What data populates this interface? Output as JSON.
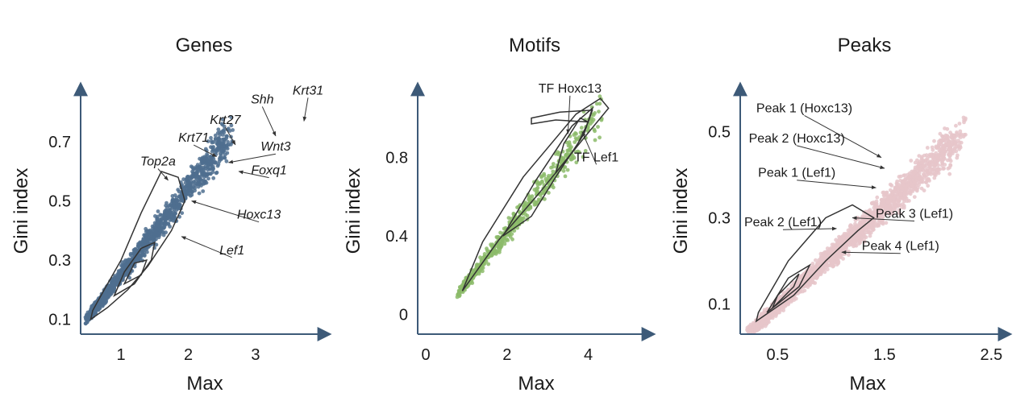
{
  "chart_data": [
    {
      "type": "scatter",
      "title": "Genes",
      "xlabel": "Max",
      "ylabel": "Gini index",
      "xlim": [
        0.4,
        3.9
      ],
      "ylim": [
        0.05,
        0.88
      ],
      "xticks": [
        1,
        2,
        3
      ],
      "xtick_labels": [
        "1",
        "2",
        "3"
      ],
      "yticks": [
        0.1,
        0.3,
        0.5,
        0.7
      ],
      "ytick_labels": [
        "0.1",
        "0.3",
        "0.5",
        "0.7"
      ],
      "point_color": "#4f6f8f",
      "density_trend": {
        "x_start": 0.55,
        "x_end": 2.6,
        "slope": 0.29,
        "intercept": -0.04
      },
      "contours": [
        [
          [
            0.55,
            0.1
          ],
          [
            0.8,
            0.14
          ],
          [
            1.1,
            0.2
          ],
          [
            1.4,
            0.28
          ],
          [
            1.75,
            0.4
          ],
          [
            1.95,
            0.5
          ],
          [
            1.85,
            0.58
          ],
          [
            1.6,
            0.6
          ],
          [
            1.3,
            0.46
          ],
          [
            1.0,
            0.3
          ],
          [
            0.75,
            0.2
          ],
          [
            0.58,
            0.13
          ],
          [
            0.55,
            0.1
          ]
        ],
        [
          [
            0.9,
            0.18
          ],
          [
            1.2,
            0.22
          ],
          [
            1.45,
            0.3
          ],
          [
            1.5,
            0.36
          ],
          [
            1.3,
            0.34
          ],
          [
            1.05,
            0.26
          ],
          [
            0.9,
            0.18
          ]
        ],
        [
          [
            1.05,
            0.22
          ],
          [
            1.3,
            0.25
          ],
          [
            1.38,
            0.3
          ],
          [
            1.2,
            0.29
          ],
          [
            1.05,
            0.22
          ]
        ]
      ],
      "highlights": [
        {
          "label": "Krt31",
          "x": 3.72,
          "y": 0.77,
          "italic": true,
          "label_x": 3.78,
          "label_y": 0.86
        },
        {
          "label": "Shh",
          "x": 3.3,
          "y": 0.72,
          "italic": true,
          "label_x": 3.1,
          "label_y": 0.83
        },
        {
          "label": "Krt27",
          "x": 2.7,
          "y": 0.69,
          "italic": true,
          "label_x": 2.55,
          "label_y": 0.76
        },
        {
          "label": "Krt71",
          "x": 2.42,
          "y": 0.65,
          "italic": true,
          "label_x": 2.08,
          "label_y": 0.7
        },
        {
          "label": "Wnt3",
          "x": 2.6,
          "y": 0.63,
          "italic": true,
          "label_x": 3.3,
          "label_y": 0.67
        },
        {
          "label": "Top2a",
          "x": 1.7,
          "y": 0.57,
          "italic": true,
          "label_x": 1.55,
          "label_y": 0.62
        },
        {
          "label": "Foxq1",
          "x": 2.75,
          "y": 0.6,
          "italic": true,
          "label_x": 3.2,
          "label_y": 0.59
        },
        {
          "label": "Hoxc13",
          "x": 2.05,
          "y": 0.5,
          "italic": true,
          "label_x": 3.05,
          "label_y": 0.44
        },
        {
          "label": "Lef1",
          "x": 1.9,
          "y": 0.38,
          "italic": true,
          "label_x": 2.65,
          "label_y": 0.32
        }
      ]
    },
    {
      "type": "scatter",
      "title": "Motifs",
      "xlabel": "Max",
      "ylabel": "Gini index",
      "xlim": [
        -0.2,
        5.3
      ],
      "ylim": [
        -0.1,
        1.15
      ],
      "xticks": [
        0,
        2,
        4
      ],
      "xtick_labels": [
        "0",
        "2",
        "4"
      ],
      "yticks": [
        0,
        0.4,
        0.8
      ],
      "ytick_labels": [
        "0",
        "0.4",
        "0.8"
      ],
      "point_color": "#8cbb6a",
      "density_trend": {
        "x_start": 0.9,
        "x_end": 4.3,
        "slope": 0.26,
        "intercept": -0.1
      },
      "contours": [
        [
          [
            0.9,
            0.12
          ],
          [
            1.8,
            0.38
          ],
          [
            2.8,
            0.62
          ],
          [
            3.9,
            0.9
          ],
          [
            4.5,
            1.05
          ],
          [
            4.3,
            1.1
          ],
          [
            3.7,
            1.02
          ],
          [
            2.4,
            0.7
          ],
          [
            1.4,
            0.37
          ],
          [
            0.9,
            0.12
          ]
        ],
        [
          [
            1.9,
            0.4
          ],
          [
            2.6,
            0.5
          ],
          [
            3.2,
            0.7
          ],
          [
            3.9,
            0.92
          ],
          [
            4.1,
            1.05
          ],
          [
            3.6,
            0.96
          ],
          [
            2.7,
            0.68
          ],
          [
            1.9,
            0.4
          ]
        ],
        [
          [
            3.2,
            0.72
          ],
          [
            3.7,
            0.85
          ],
          [
            4.0,
            0.98
          ],
          [
            3.8,
            1.0
          ],
          [
            3.4,
            0.87
          ],
          [
            3.2,
            0.72
          ]
        ],
        [
          [
            2.6,
            0.97
          ],
          [
            3.2,
            0.99
          ],
          [
            4.0,
            0.98
          ],
          [
            4.1,
            1.04
          ],
          [
            3.3,
            1.03
          ],
          [
            2.6,
            1.0
          ],
          [
            2.6,
            0.97
          ]
        ]
      ],
      "highlights": [
        {
          "label": "TF Hoxc13",
          "x": 3.5,
          "y": 0.92,
          "italic": false,
          "label_x": 3.55,
          "label_y": 1.13
        },
        {
          "label": "TF Lef1",
          "x": 3.85,
          "y": 0.93,
          "italic": false,
          "label_x": 4.2,
          "label_y": 0.78
        }
      ]
    },
    {
      "type": "scatter",
      "title": "Peaks",
      "xlabel": "Max",
      "ylabel": "Gini index",
      "xlim": [
        0.15,
        2.55
      ],
      "ylim": [
        0.03,
        0.6
      ],
      "xticks": [
        0.5,
        1.5,
        2.5
      ],
      "xtick_labels": [
        "0.5",
        "1.5",
        "2.5"
      ],
      "yticks": [
        0.1,
        0.3,
        0.5
      ],
      "ytick_labels": [
        "0.1",
        "0.3",
        "0.5"
      ],
      "point_color": "#e6c5ca",
      "density_trend": {
        "x_start": 0.25,
        "x_end": 2.2,
        "slope": 0.23,
        "intercept": -0.02
      },
      "contours": [
        [
          [
            0.3,
            0.06
          ],
          [
            0.65,
            0.12
          ],
          [
            0.95,
            0.2
          ],
          [
            1.25,
            0.27
          ],
          [
            1.4,
            0.3
          ],
          [
            1.2,
            0.33
          ],
          [
            0.95,
            0.3
          ],
          [
            0.6,
            0.2
          ],
          [
            0.32,
            0.08
          ],
          [
            0.3,
            0.06
          ]
        ],
        [
          [
            0.4,
            0.08
          ],
          [
            0.7,
            0.14
          ],
          [
            0.8,
            0.19
          ],
          [
            0.6,
            0.16
          ],
          [
            0.4,
            0.08
          ]
        ],
        [
          [
            0.45,
            0.09
          ],
          [
            0.65,
            0.14
          ],
          [
            0.7,
            0.17
          ],
          [
            0.5,
            0.12
          ],
          [
            0.45,
            0.09
          ]
        ]
      ],
      "highlights": [
        {
          "label": "Peak 1 (Hoxc13)",
          "x": 1.47,
          "y": 0.44,
          "italic": false,
          "label_x": 0.75,
          "label_y": 0.545
        },
        {
          "label": "Peak 2 (Hoxc13)",
          "x": 1.5,
          "y": 0.415,
          "italic": false,
          "label_x": 0.68,
          "label_y": 0.475
        },
        {
          "label": "Peak 1 (Lef1)",
          "x": 1.42,
          "y": 0.37,
          "italic": false,
          "label_x": 0.68,
          "label_y": 0.395
        },
        {
          "label": "Peak 3 (Lef1)",
          "x": 1.2,
          "y": 0.3,
          "italic": false,
          "label_x": 1.78,
          "label_y": 0.3
        },
        {
          "label": "Peak 2 (Lef1)",
          "x": 1.05,
          "y": 0.275,
          "italic": false,
          "label_x": 0.55,
          "label_y": 0.28
        },
        {
          "label": "Peak 4 (Lef1)",
          "x": 1.1,
          "y": 0.22,
          "italic": false,
          "label_x": 1.65,
          "label_y": 0.225
        }
      ]
    }
  ]
}
